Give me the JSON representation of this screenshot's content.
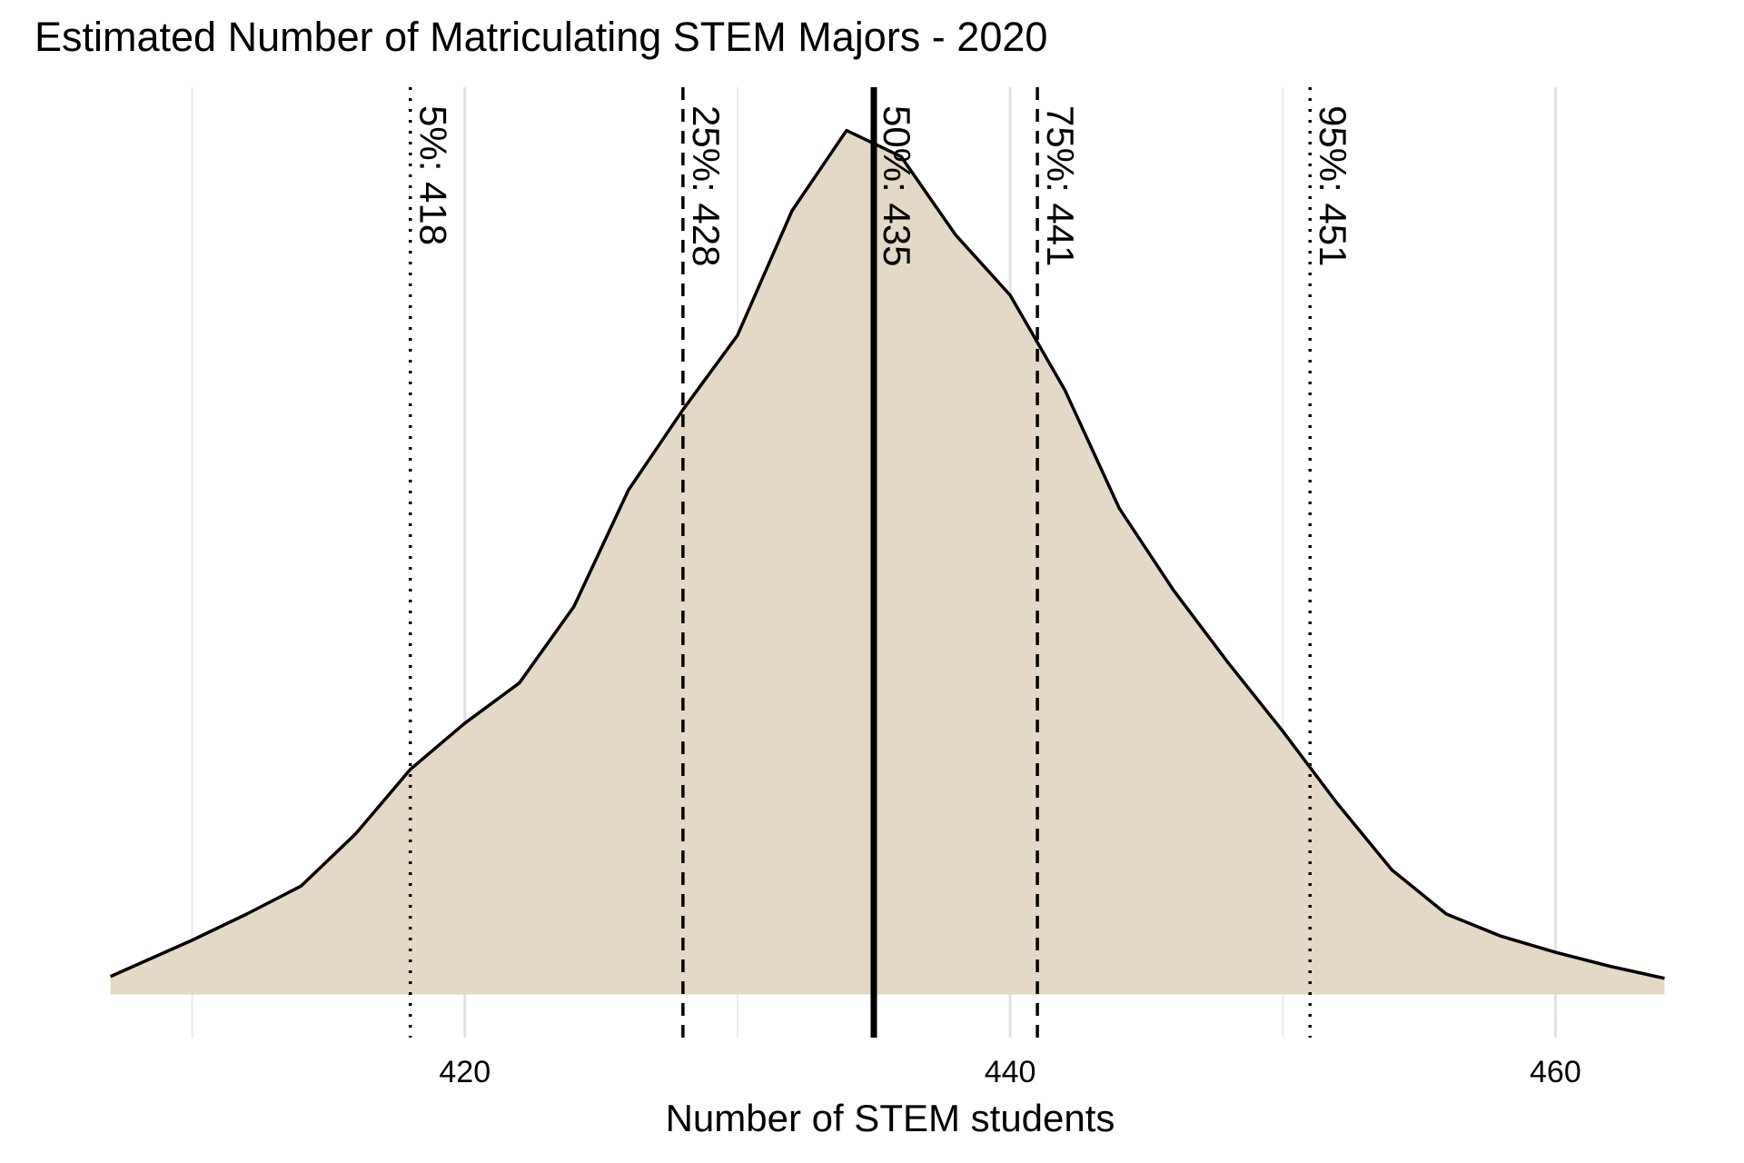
{
  "chart_data": {
    "type": "density",
    "title": "Estimated Number of Matriculating STEM Majors - 2020",
    "x_label": "Number of STEM students",
    "x": [
      407,
      410,
      412,
      414,
      416,
      418,
      420,
      422,
      424,
      426,
      428,
      430,
      432,
      434,
      436,
      438,
      440,
      442,
      444,
      446,
      448,
      450,
      452,
      454,
      456,
      458,
      460,
      462,
      464
    ],
    "values": [
      0.00089,
      0.0027,
      0.004,
      0.0054,
      0.008,
      0.0112,
      0.0135,
      0.0155,
      0.0193,
      0.0251,
      0.0291,
      0.0328,
      0.039,
      0.043,
      0.0417,
      0.0378,
      0.0348,
      0.0301,
      0.0242,
      0.0201,
      0.0165,
      0.0131,
      0.0095,
      0.0062,
      0.004,
      0.0029,
      0.0021,
      0.0014,
      0.0008
    ],
    "color": "#e3d9c6",
    "line_color": "#000000",
    "xlim": [
      404.15,
      466.85
    ],
    "ylim": [
      -0.00215,
      0.04515
    ],
    "xticks": [
      420,
      440,
      460
    ],
    "x_minor_grid": [
      410,
      430,
      450
    ],
    "grid": true,
    "quantiles": [
      {
        "value": 418,
        "label": "5%: 418",
        "style": "dotted"
      },
      {
        "value": 428,
        "label": "25%: 428",
        "style": "dashed"
      },
      {
        "value": 435,
        "label": "50%: 435",
        "style": "solid"
      },
      {
        "value": 441,
        "label": "75%: 441",
        "style": "dashed"
      },
      {
        "value": 451,
        "label": "95%: 451",
        "style": "dotted"
      }
    ]
  }
}
